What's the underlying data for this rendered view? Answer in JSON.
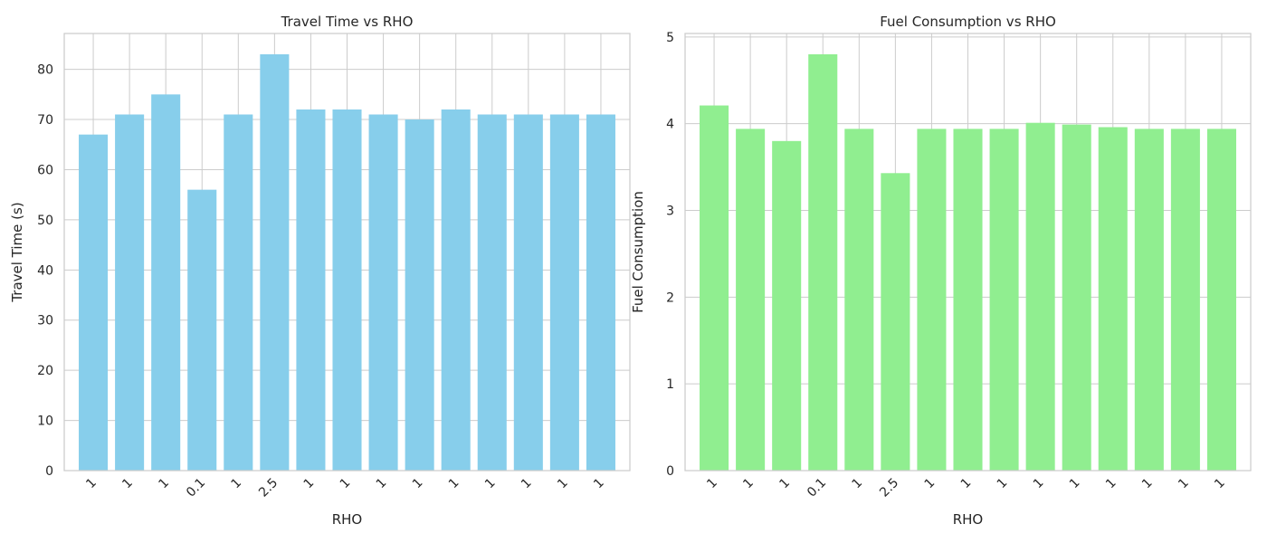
{
  "chart_data": [
    {
      "type": "bar",
      "title": "Travel Time vs RHO",
      "xlabel": "RHO",
      "ylabel": "Travel Time (s)",
      "categories": [
        "1",
        "1",
        "1",
        "0.1",
        "1",
        "2.5",
        "1",
        "1",
        "1",
        "1",
        "1",
        "1",
        "1",
        "1",
        "1"
      ],
      "values": [
        67,
        71,
        75,
        56,
        71,
        83,
        72,
        72,
        71,
        70,
        72,
        71,
        71,
        71,
        71
      ],
      "ylim": [
        0,
        87.15
      ],
      "yticks": [
        0,
        10,
        20,
        30,
        40,
        50,
        60,
        70,
        80
      ],
      "grid": true,
      "bar_color": "#87ceeb"
    },
    {
      "type": "bar",
      "title": "Fuel Consumption vs RHO",
      "xlabel": "RHO",
      "ylabel": "Fuel Consumption",
      "categories": [
        "1",
        "1",
        "1",
        "0.1",
        "1",
        "2.5",
        "1",
        "1",
        "1",
        "1",
        "1",
        "1",
        "1",
        "1",
        "1"
      ],
      "values": [
        4.21,
        3.94,
        3.8,
        4.8,
        3.94,
        3.43,
        3.94,
        3.94,
        3.94,
        4.01,
        3.99,
        3.96,
        3.94,
        3.94,
        3.94
      ],
      "ylim": [
        0,
        5.04
      ],
      "yticks": [
        0,
        1,
        2,
        3,
        4,
        5
      ],
      "grid": true,
      "bar_color": "#90ee90"
    }
  ]
}
